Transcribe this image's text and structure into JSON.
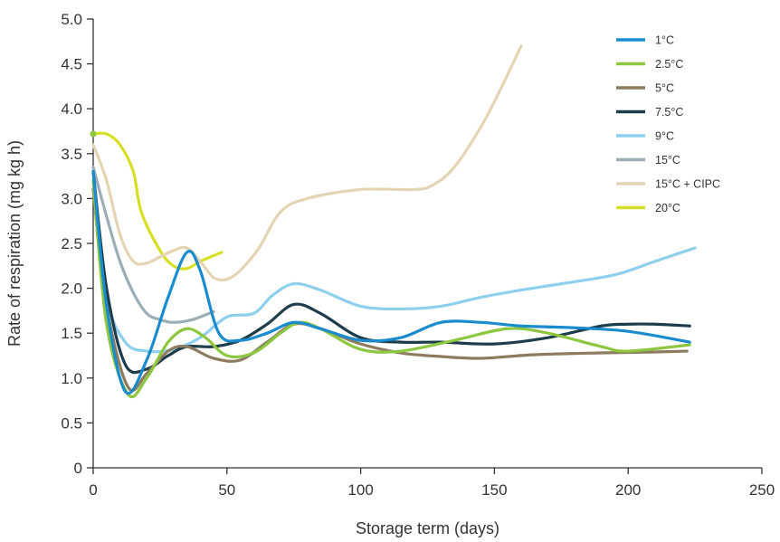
{
  "chart_data": {
    "type": "line",
    "title": "",
    "xlabel": "Storage term (days)",
    "ylabel": "Rate of respiration (mg kg h)",
    "xlim": [
      0,
      250
    ],
    "ylim": [
      0,
      5.0
    ],
    "x_ticks": [
      0,
      50,
      100,
      150,
      200,
      250
    ],
    "x_tick_labels": [
      "0",
      "50",
      "100",
      "150",
      "200",
      "250"
    ],
    "y_ticks": [
      0,
      0.5,
      1.0,
      1.5,
      2.0,
      2.5,
      3.0,
      3.5,
      4.0,
      4.5,
      5.0
    ],
    "y_tick_labels": [
      "0",
      "0.5",
      "1.0",
      "1.5",
      "2.0",
      "2.5",
      "3.0",
      "3.5",
      "4.0",
      "4.5",
      "5.0"
    ],
    "grid": false,
    "legend_position": "top-right",
    "series": [
      {
        "name": "1°C",
        "color": "#1a8ccd",
        "x": [
          0,
          5,
          12,
          20,
          28,
          35,
          40,
          47,
          55,
          65,
          75,
          85,
          100,
          115,
          130,
          145,
          160,
          180,
          200,
          223
        ],
        "y": [
          3.3,
          1.8,
          0.85,
          1.2,
          1.9,
          2.4,
          2.2,
          1.5,
          1.42,
          1.5,
          1.62,
          1.55,
          1.42,
          1.45,
          1.62,
          1.62,
          1.58,
          1.56,
          1.52,
          1.4
        ]
      },
      {
        "name": "2.5°C",
        "color": "#8dc63f",
        "x": [
          0,
          5,
          13,
          20,
          28,
          35,
          42,
          50,
          60,
          70,
          77,
          85,
          100,
          115,
          135,
          155,
          170,
          190,
          200,
          223
        ],
        "y": [
          3.2,
          1.6,
          0.82,
          1.0,
          1.4,
          1.55,
          1.45,
          1.25,
          1.28,
          1.5,
          1.62,
          1.55,
          1.32,
          1.3,
          1.42,
          1.55,
          1.5,
          1.35,
          1.3,
          1.37
        ]
      },
      {
        "name": "5°C",
        "color": "#8c7b5f",
        "x": [
          0,
          5,
          13,
          20,
          28,
          35,
          45,
          55,
          65,
          75,
          85,
          100,
          115,
          130,
          145,
          165,
          190,
          210,
          222
        ],
        "y": [
          3.1,
          1.8,
          0.9,
          1.05,
          1.3,
          1.35,
          1.22,
          1.2,
          1.4,
          1.6,
          1.55,
          1.38,
          1.28,
          1.24,
          1.22,
          1.26,
          1.28,
          1.29,
          1.3
        ]
      },
      {
        "name": "7.5°C",
        "color": "#1d3c4c",
        "x": [
          0,
          5,
          12,
          20,
          28,
          35,
          45,
          55,
          65,
          75,
          85,
          100,
          115,
          130,
          150,
          170,
          190,
          200,
          210,
          223
        ],
        "y": [
          3.3,
          2.0,
          1.15,
          1.1,
          1.25,
          1.35,
          1.35,
          1.42,
          1.6,
          1.82,
          1.72,
          1.45,
          1.4,
          1.4,
          1.38,
          1.45,
          1.58,
          1.6,
          1.6,
          1.58
        ]
      },
      {
        "name": "9°C",
        "color": "#8ecfee",
        "x": [
          0,
          5,
          12,
          20,
          30,
          40,
          50,
          60,
          67,
          75,
          85,
          100,
          115,
          130,
          145,
          160,
          175,
          195,
          210,
          225
        ],
        "y": [
          3.2,
          1.9,
          1.4,
          1.3,
          1.32,
          1.45,
          1.68,
          1.72,
          1.92,
          2.05,
          1.98,
          1.8,
          1.77,
          1.8,
          1.9,
          1.98,
          2.05,
          2.15,
          2.3,
          2.45
        ]
      },
      {
        "name": "15°C",
        "color": "#9badb7",
        "x": [
          0,
          5,
          10,
          15,
          20,
          25,
          30,
          37,
          45
        ],
        "y": [
          3.35,
          2.8,
          2.3,
          1.95,
          1.72,
          1.65,
          1.62,
          1.65,
          1.74
        ]
      },
      {
        "name": "15°C + CIPC",
        "color": "#e3d4b4",
        "x": [
          0,
          5,
          10,
          15,
          20,
          25,
          30,
          35,
          40,
          45,
          50,
          55,
          62,
          70,
          80,
          100,
          120,
          127,
          135,
          145,
          152,
          160
        ],
        "y": [
          3.6,
          3.2,
          2.6,
          2.3,
          2.28,
          2.35,
          2.42,
          2.45,
          2.3,
          2.12,
          2.1,
          2.2,
          2.45,
          2.85,
          3.0,
          3.1,
          3.1,
          3.15,
          3.35,
          3.8,
          4.2,
          4.7
        ]
      },
      {
        "name": "20°C",
        "color": "#d7df23",
        "x": [
          0,
          5,
          10,
          15,
          18,
          25,
          30,
          35,
          40,
          48
        ],
        "y": [
          3.72,
          3.72,
          3.6,
          3.3,
          2.85,
          2.42,
          2.25,
          2.22,
          2.3,
          2.4
        ]
      }
    ],
    "markers": [
      {
        "x": 0,
        "y": 3.72,
        "color": "#8dc63f"
      }
    ]
  }
}
